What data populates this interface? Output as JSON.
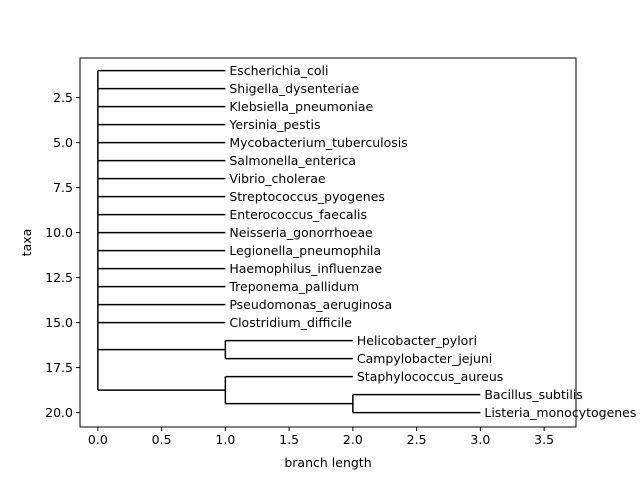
{
  "chart_data": {
    "type": "dendrogram",
    "xlabel": "branch length",
    "ylabel": "taxa",
    "xlim": [
      -0.14,
      3.75
    ],
    "ylim": [
      20.8,
      0.3
    ],
    "y_inverted": true,
    "grid": false,
    "xticks": [
      0.0,
      0.5,
      1.0,
      1.5,
      2.0,
      2.5,
      3.0,
      3.5
    ],
    "xtick_labels": [
      "0.0",
      "0.5",
      "1.0",
      "1.5",
      "2.0",
      "2.5",
      "3.0",
      "3.5"
    ],
    "yticks": [
      2.5,
      5.0,
      7.5,
      10.0,
      12.5,
      15.0,
      17.5,
      20.0
    ],
    "ytick_labels": [
      "2.5",
      "5.0",
      "7.5",
      "10.0",
      "12.5",
      "15.0",
      "17.5",
      "20.0"
    ],
    "leaves": [
      {
        "name": "Escherichia_coli",
        "x": 1,
        "y": 1
      },
      {
        "name": "Shigella_dysenteriae",
        "x": 1,
        "y": 2
      },
      {
        "name": "Klebsiella_pneumoniae",
        "x": 1,
        "y": 3
      },
      {
        "name": "Yersinia_pestis",
        "x": 1,
        "y": 4
      },
      {
        "name": "Mycobacterium_tuberculosis",
        "x": 1,
        "y": 5
      },
      {
        "name": "Salmonella_enterica",
        "x": 1,
        "y": 6
      },
      {
        "name": "Vibrio_cholerae",
        "x": 1,
        "y": 7
      },
      {
        "name": "Streptococcus_pyogenes",
        "x": 1,
        "y": 8
      },
      {
        "name": "Enterococcus_faecalis",
        "x": 1,
        "y": 9
      },
      {
        "name": "Neisseria_gonorrhoeae",
        "x": 1,
        "y": 10
      },
      {
        "name": "Legionella_pneumophila",
        "x": 1,
        "y": 11
      },
      {
        "name": "Haemophilus_influenzae",
        "x": 1,
        "y": 12
      },
      {
        "name": "Treponema_pallidum",
        "x": 1,
        "y": 13
      },
      {
        "name": "Pseudomonas_aeruginosa",
        "x": 1,
        "y": 14
      },
      {
        "name": "Clostridium_difficile",
        "x": 1,
        "y": 15
      },
      {
        "name": "Helicobacter_pylori",
        "x": 2,
        "y": 16
      },
      {
        "name": "Campylobacter_jejuni",
        "x": 2,
        "y": 17
      },
      {
        "name": "Staphylococcus_aureus",
        "x": 2,
        "y": 18
      },
      {
        "name": "Bacillus_subtilis",
        "x": 3,
        "y": 19
      },
      {
        "name": "Listeria_monocytogenes",
        "x": 3,
        "y": 20
      }
    ],
    "internal_nodes": [
      {
        "id": "root",
        "x": 0,
        "children": [
          "L1",
          "L2",
          "L3",
          "L4",
          "L5",
          "L6",
          "L7",
          "L8",
          "L9",
          "L10",
          "L11",
          "L12",
          "L13",
          "L14",
          "L15",
          "cladeA",
          "cladeB"
        ]
      },
      {
        "id": "cladeA",
        "x": 1,
        "children": [
          "L16",
          "L17"
        ]
      },
      {
        "id": "cladeB",
        "x": 1,
        "children": [
          "L18",
          "cladeC"
        ]
      },
      {
        "id": "cladeC",
        "x": 2,
        "children": [
          "L19",
          "L20"
        ]
      }
    ]
  }
}
